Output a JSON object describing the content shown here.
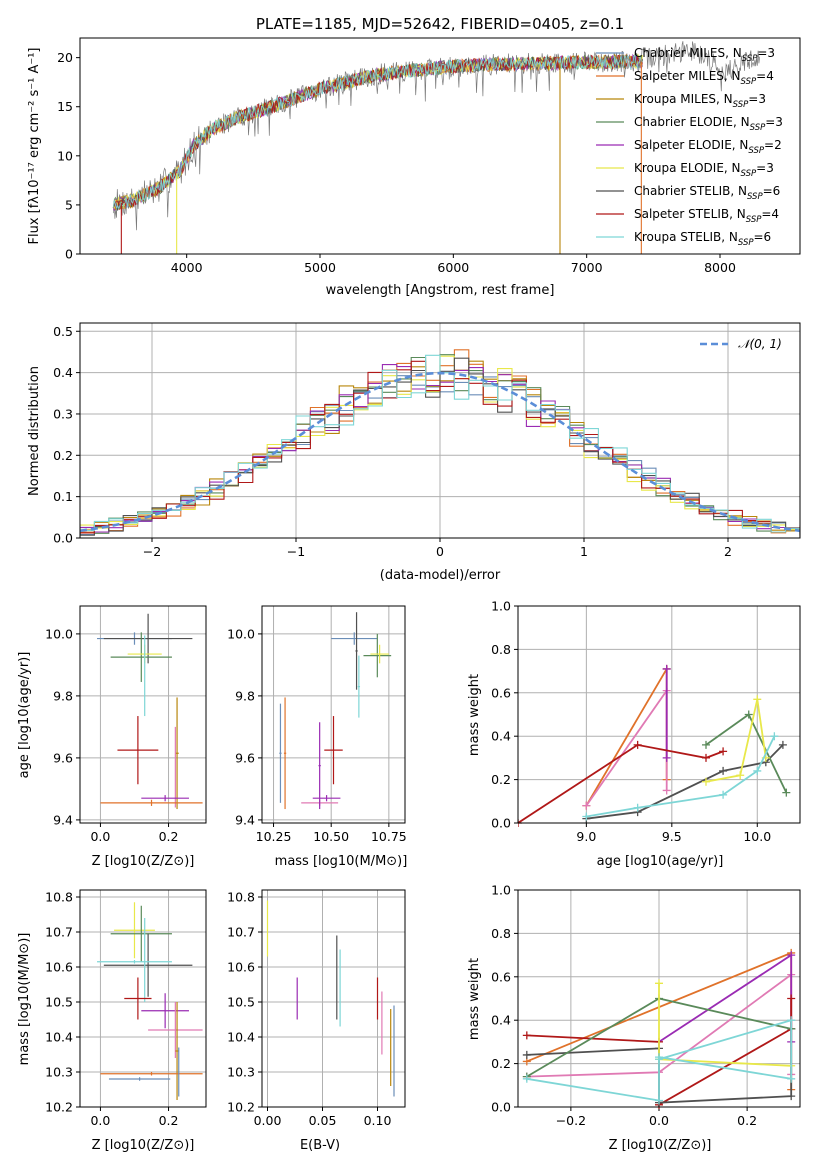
{
  "chart_data": [
    {
      "type": "line",
      "title": "PLATE=1185, MJD=52642, FIBERID=0405, z=0.1",
      "xlabel": "wavelength [Angstrom, rest frame]",
      "ylabel": "Flux [fλ10⁻¹⁷ erg cm⁻² s⁻¹ A⁻¹]",
      "xlim": [
        3200,
        8600
      ],
      "ylim": [
        0,
        22
      ],
      "xticks": [
        "4000",
        "5000",
        "6000",
        "7000",
        "8000"
      ],
      "yticks": [
        "0",
        "5",
        "10",
        "15",
        "20"
      ],
      "grid": false,
      "legend_position": "top-right",
      "continuum_shape": {
        "x": [
          3450,
          3600,
          3800,
          3950,
          4050,
          4200,
          4400,
          4600,
          4800,
          5000,
          5200,
          5400,
          5700,
          6000,
          6300,
          6600,
          6900,
          7200,
          7400
        ],
        "y": [
          5.0,
          5.5,
          6.8,
          8.5,
          11.0,
          12.8,
          14.0,
          14.8,
          15.8,
          16.8,
          17.5,
          18.2,
          18.7,
          19.1,
          19.3,
          19.4,
          19.5,
          19.6,
          19.6
        ]
      },
      "data_extension": {
        "x": [
          7400,
          7800,
          8050,
          8300
        ],
        "y": [
          19.8,
          20.8,
          18.6,
          20.2
        ]
      },
      "series": [
        {
          "name": "Chabrier MILES, N_SSP=3",
          "color": "#6b8eb8"
        },
        {
          "name": "Salpeter MILES, N_SSP=4",
          "color": "#e0722a"
        },
        {
          "name": "Kroupa MILES, N_SSP=3",
          "color": "#b8860b"
        },
        {
          "name": "Chabrier ELODIE, N_SSP=3",
          "color": "#5a8a5a"
        },
        {
          "name": "Salpeter ELODIE, N_SSP=2",
          "color": "#9a2bb3"
        },
        {
          "name": "Kroupa ELODIE, N_SSP=3",
          "color": "#e8e84a"
        },
        {
          "name": "Chabrier STELIB, N_SSP=6",
          "color": "#505050"
        },
        {
          "name": "Salpeter STELIB, N_SSP=4",
          "color": "#b01818"
        },
        {
          "name": "Kroupa STELIB, N_SSP=6",
          "color": "#7ed6d6"
        }
      ],
      "legend_labels": [
        {
          "pre": "Chabrier MILES, N",
          "sub": "SSP",
          "post": "=3"
        },
        {
          "pre": "Salpeter MILES, N",
          "sub": "SSP",
          "post": "=4"
        },
        {
          "pre": "Kroupa MILES, N",
          "sub": "SSP",
          "post": "=3"
        },
        {
          "pre": "Chabrier ELODIE, N",
          "sub": "SSP",
          "post": "=3"
        },
        {
          "pre": "Salpeter ELODIE, N",
          "sub": "SSP",
          "post": "=2"
        },
        {
          "pre": "Kroupa ELODIE, N",
          "sub": "SSP",
          "post": "=3"
        },
        {
          "pre": "Chabrier STELIB, N",
          "sub": "SSP",
          "post": "=6"
        },
        {
          "pre": "Salpeter STELIB, N",
          "sub": "SSP",
          "post": "=4"
        },
        {
          "pre": "Kroupa STELIB, N",
          "sub": "SSP",
          "post": "=6"
        }
      ]
    },
    {
      "type": "line",
      "xlabel": "(data-model)/error",
      "ylabel": "Normed distribution",
      "xlim": [
        -2.5,
        2.5
      ],
      "ylim": [
        0,
        0.52
      ],
      "xticks": [
        "−2",
        "−1",
        "0",
        "1",
        "2"
      ],
      "yticks": [
        "0.0",
        "0.1",
        "0.2",
        "0.3",
        "0.4",
        "0.5"
      ],
      "grid": true,
      "legend": {
        "label": "𝒩(0, 1)",
        "position": "top-right",
        "style": "dashed",
        "color": "#5b8ed8"
      },
      "bin_width": 0.1,
      "histogram_series_colors": [
        "#6b8eb8",
        "#e0722a",
        "#b8860b",
        "#5a8a5a",
        "#9a2bb3",
        "#e8e84a",
        "#505050",
        "#b01818",
        "#7ed6d6"
      ]
    },
    {
      "type": "scatter",
      "xlabel": "Z [log10(Z/Z⊙)]",
      "ylabel": "age  [log10(age/yr)]",
      "xlim": [
        -0.06,
        0.31
      ],
      "ylim": [
        9.39,
        10.09
      ],
      "xticks": [
        "0.0",
        "0.2"
      ],
      "yticks": [
        "9.4",
        "9.6",
        "9.8",
        "10.0"
      ],
      "grid": true,
      "points": [
        {
          "x": 0.1,
          "y": 9.985,
          "xerr": 0.11,
          "yerr": 0.02,
          "color": "#6b8eb8"
        },
        {
          "x": 0.14,
          "y": 9.985,
          "xerr": 0.13,
          "yerr": 0.08,
          "color": "#505050"
        },
        {
          "x": 0.12,
          "y": 9.925,
          "xerr": 0.09,
          "yerr": 0.08,
          "color": "#5a8a5a"
        },
        {
          "x": 0.13,
          "y": 9.935,
          "xerr": 0.05,
          "yerr": 0.03,
          "color": "#e8e84a"
        },
        {
          "x": 0.13,
          "y": 9.865,
          "xerr": 0.0,
          "yerr": 0.13,
          "color": "#7ed6d6"
        },
        {
          "x": 0.11,
          "y": 9.625,
          "xerr": 0.06,
          "yerr": 0.11,
          "color": "#b01818"
        },
        {
          "x": 0.225,
          "y": 9.615,
          "xerr": 0.005,
          "yerr": 0.18,
          "color": "#b8860b"
        },
        {
          "x": 0.22,
          "y": 9.57,
          "xerr": 0.0,
          "yerr": 0.13,
          "color": "#e07ab4"
        },
        {
          "x": 0.19,
          "y": 9.47,
          "xerr": 0.07,
          "yerr": 0.01,
          "color": "#9a2bb3"
        },
        {
          "x": 0.15,
          "y": 9.455,
          "xerr": 0.15,
          "yerr": 0.01,
          "color": "#e0722a"
        }
      ]
    },
    {
      "type": "scatter",
      "xlabel": "mass [log10(M/M⊙)]",
      "ylabel": "",
      "xlim": [
        10.2,
        10.82
      ],
      "ylim": [
        9.39,
        10.09
      ],
      "xticks": [
        "10.25",
        "10.50",
        "10.75"
      ],
      "yticks": [
        "9.4",
        "9.6",
        "9.8",
        "10.0"
      ],
      "grid": true,
      "points": [
        {
          "x": 10.28,
          "y": 9.615,
          "xerr": 0.005,
          "yerr": 0.16,
          "color": "#6b8eb8"
        },
        {
          "x": 10.3,
          "y": 9.615,
          "xerr": 0.005,
          "yerr": 0.18,
          "color": "#e0722a"
        },
        {
          "x": 10.45,
          "y": 9.455,
          "xerr": 0.08,
          "yerr": 0.01,
          "color": "#e07ab4"
        },
        {
          "x": 10.48,
          "y": 9.47,
          "xerr": 0.06,
          "yerr": 0.01,
          "color": "#9a2bb3"
        },
        {
          "x": 10.45,
          "y": 9.575,
          "xerr": 0.005,
          "yerr": 0.14,
          "color": "#9a2bb3"
        },
        {
          "x": 10.51,
          "y": 9.625,
          "xerr": 0.04,
          "yerr": 0.11,
          "color": "#b01818"
        },
        {
          "x": 10.6,
          "y": 9.985,
          "xerr": 0.1,
          "yerr": 0.02,
          "color": "#6b8eb8"
        },
        {
          "x": 10.61,
          "y": 9.945,
          "xerr": 0.005,
          "yerr": 0.125,
          "color": "#505050"
        },
        {
          "x": 10.62,
          "y": 9.83,
          "xerr": 0.005,
          "yerr": 0.1,
          "color": "#7ed6d6"
        },
        {
          "x": 10.7,
          "y": 9.93,
          "xerr": 0.06,
          "yerr": 0.07,
          "color": "#5a8a5a"
        },
        {
          "x": 10.71,
          "y": 9.935,
          "xerr": 0.04,
          "yerr": 0.03,
          "color": "#e8e84a"
        }
      ]
    },
    {
      "type": "line",
      "xlabel": "age  [log10(age/yr)]",
      "ylabel": "mass weight",
      "xlim": [
        8.6,
        10.25
      ],
      "ylim": [
        0,
        1.0
      ],
      "xticks": [
        "9.0",
        "9.5",
        "10.0"
      ],
      "yticks": [
        "0.0",
        "0.2",
        "0.4",
        "0.6",
        "0.8",
        "1.0"
      ],
      "grid": true,
      "series": [
        {
          "color": "#e0722a",
          "x": [
            9.0,
            9.47,
            9.47
          ],
          "y": [
            0.08,
            0.71,
            0.2
          ]
        },
        {
          "color": "#e07ab4",
          "x": [
            9.0,
            9.47,
            9.47
          ],
          "y": [
            0.08,
            0.61,
            0.15
          ]
        },
        {
          "color": "#9a2bb3",
          "x": [
            9.47,
            9.47
          ],
          "y": [
            0.71,
            0.3
          ]
        },
        {
          "color": "#b01818",
          "x": [
            8.6,
            9.3,
            9.7,
            9.8
          ],
          "y": [
            0.0,
            0.36,
            0.3,
            0.33
          ]
        },
        {
          "color": "#505050",
          "x": [
            9.0,
            9.3,
            9.8,
            10.05,
            10.15
          ],
          "y": [
            0.02,
            0.05,
            0.24,
            0.28,
            0.36
          ]
        },
        {
          "color": "#5a8a5a",
          "x": [
            9.7,
            9.95,
            10.17
          ],
          "y": [
            0.36,
            0.5,
            0.14
          ]
        },
        {
          "color": "#e8e84a",
          "x": [
            9.7,
            9.9,
            10.0,
            10.05
          ],
          "y": [
            0.19,
            0.22,
            0.57,
            0.3
          ]
        },
        {
          "color": "#7ed6d6",
          "x": [
            9.0,
            9.3,
            9.8,
            10.0,
            10.1
          ],
          "y": [
            0.03,
            0.07,
            0.13,
            0.24,
            0.4
          ]
        }
      ]
    },
    {
      "type": "scatter",
      "xlabel": "Z [log10(Z/Z⊙)]",
      "ylabel": "mass [log10(M/M⊙)]",
      "xlim": [
        -0.06,
        0.31
      ],
      "ylim": [
        10.2,
        10.82
      ],
      "xticks": [
        "0.0",
        "0.2"
      ],
      "yticks": [
        "10.2",
        "10.3",
        "10.4",
        "10.5",
        "10.6",
        "10.7",
        "10.8"
      ],
      "grid": true,
      "points": [
        {
          "x": 0.1,
          "y": 10.705,
          "xerr": 0.06,
          "yerr": 0.08,
          "color": "#e8e84a"
        },
        {
          "x": 0.12,
          "y": 10.695,
          "xerr": 0.09,
          "yerr": 0.08,
          "color": "#5a8a5a"
        },
        {
          "x": 0.14,
          "y": 10.605,
          "xerr": 0.13,
          "yerr": 0.09,
          "color": "#505050"
        },
        {
          "x": 0.1,
          "y": 10.615,
          "xerr": 0.11,
          "yerr": 0.005,
          "color": "#7ed6d6"
        },
        {
          "x": 0.13,
          "y": 10.62,
          "xerr": 0.0,
          "yerr": 0.12,
          "color": "#7ed6d6"
        },
        {
          "x": 0.11,
          "y": 10.51,
          "xerr": 0.04,
          "yerr": 0.06,
          "color": "#b01818"
        },
        {
          "x": 0.19,
          "y": 10.475,
          "xerr": 0.07,
          "yerr": 0.05,
          "color": "#9a2bb3"
        },
        {
          "x": 0.22,
          "y": 10.42,
          "xerr": 0.08,
          "yerr": 0.08,
          "color": "#e07ab4"
        },
        {
          "x": 0.225,
          "y": 10.36,
          "xerr": 0.005,
          "yerr": 0.14,
          "color": "#b8860b"
        },
        {
          "x": 0.15,
          "y": 10.295,
          "xerr": 0.15,
          "yerr": 0.005,
          "color": "#e0722a"
        },
        {
          "x": 0.115,
          "y": 10.28,
          "xerr": 0.09,
          "yerr": 0.005,
          "color": "#6b8eb8"
        },
        {
          "x": 0.23,
          "y": 10.3,
          "xerr": 0.0,
          "yerr": 0.07,
          "color": "#6b8eb8"
        }
      ]
    },
    {
      "type": "scatter",
      "xlabel": "E(B-V)",
      "ylabel": "",
      "xlim": [
        -0.005,
        0.125
      ],
      "ylim": [
        10.2,
        10.82
      ],
      "xticks": [
        "0.00",
        "0.05",
        "0.10"
      ],
      "yticks": [
        "10.2",
        "10.3",
        "10.4",
        "10.5",
        "10.6",
        "10.7",
        "10.8"
      ],
      "grid": true,
      "points": [
        {
          "x": 0.0,
          "y": 10.71,
          "xerr": 0.0,
          "yerr": 0.08,
          "color": "#e8e84a"
        },
        {
          "x": 0.027,
          "y": 10.51,
          "xerr": 0.0,
          "yerr": 0.06,
          "color": "#9a2bb3"
        },
        {
          "x": 0.063,
          "y": 10.57,
          "xerr": 0.0,
          "yerr": 0.12,
          "color": "#505050"
        },
        {
          "x": 0.066,
          "y": 10.54,
          "xerr": 0.0,
          "yerr": 0.11,
          "color": "#7ed6d6"
        },
        {
          "x": 0.1,
          "y": 10.51,
          "xerr": 0.0,
          "yerr": 0.06,
          "color": "#b01818"
        },
        {
          "x": 0.104,
          "y": 10.44,
          "xerr": 0.0,
          "yerr": 0.09,
          "color": "#e07ab4"
        },
        {
          "x": 0.112,
          "y": 10.37,
          "xerr": 0.0,
          "yerr": 0.11,
          "color": "#b8860b"
        },
        {
          "x": 0.115,
          "y": 10.36,
          "xerr": 0.0,
          "yerr": 0.13,
          "color": "#6b8eb8"
        }
      ]
    },
    {
      "type": "line",
      "xlabel": "Z [log10(Z/Z⊙)]",
      "ylabel": "mass weight",
      "xlim": [
        -0.32,
        0.32
      ],
      "ylim": [
        0,
        1.0
      ],
      "xticks": [
        "−0.2",
        "0.0",
        "0.2"
      ],
      "yticks": [
        "0.0",
        "0.2",
        "0.4",
        "0.6",
        "0.8",
        "1.0"
      ],
      "grid": true,
      "series": [
        {
          "color": "#e0722a",
          "x": [
            -0.3,
            0.3,
            0.3
          ],
          "y": [
            0.21,
            0.71,
            0.08
          ]
        },
        {
          "color": "#e07ab4",
          "x": [
            -0.3,
            0.0,
            0.3,
            0.3
          ],
          "y": [
            0.14,
            0.16,
            0.61,
            0.15
          ]
        },
        {
          "color": "#9a2bb3",
          "x": [
            0.0,
            0.3,
            0.3
          ],
          "y": [
            0.3,
            0.7,
            0.3
          ]
        },
        {
          "color": "#b01818",
          "x": [
            -0.3,
            0.0,
            0.0,
            0.3,
            0.3
          ],
          "y": [
            0.33,
            0.3,
            0.01,
            0.36,
            0.5
          ]
        },
        {
          "color": "#505050",
          "x": [
            -0.3,
            0.0,
            0.0,
            0.3,
            0.3
          ],
          "y": [
            0.24,
            0.27,
            0.02,
            0.05,
            0.36
          ]
        },
        {
          "color": "#5a8a5a",
          "x": [
            -0.3,
            0.0,
            0.3
          ],
          "y": [
            0.14,
            0.5,
            0.36
          ]
        },
        {
          "color": "#e8e84a",
          "x": [
            0.0,
            0.0,
            0.3
          ],
          "y": [
            0.57,
            0.22,
            0.19
          ]
        },
        {
          "color": "#7ed6d6",
          "x": [
            -0.3,
            0.0,
            0.0,
            0.3,
            0.3,
            0.0
          ],
          "y": [
            0.13,
            0.03,
            0.23,
            0.13,
            0.4,
            0.22
          ]
        }
      ]
    }
  ]
}
